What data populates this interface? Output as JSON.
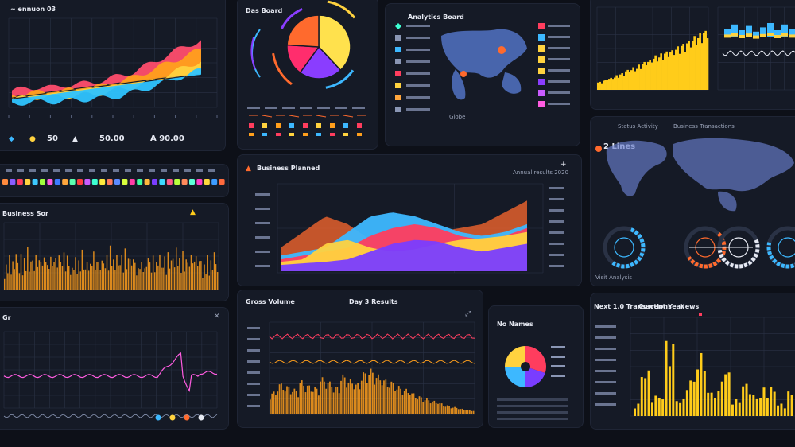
{
  "panels": {
    "top_left": {
      "title": "~ ennuon 03",
      "stats": [
        "50",
        "50.00",
        "A 90.00"
      ]
    },
    "legend_strip": {
      "label_count": 18,
      "colors": [
        "#ff8a3d",
        "#8a5cff",
        "#ff3d5e",
        "#ffd23f",
        "#3dc9ff",
        "#a0ff3d",
        "#ff5ce1",
        "#3d7bff",
        "#ffa63d",
        "#5cffb1",
        "#ff3d3d",
        "#c95cff",
        "#3dffd2",
        "#ffea3d",
        "#ff7a5c",
        "#5c8aff",
        "#d9ff3d",
        "#ff3da6",
        "#3dffa0",
        "#ffb83d",
        "#7a3dff",
        "#3dd9ff",
        "#ff5c8a",
        "#b8ff3d",
        "#ff8a5c",
        "#5cffd9",
        "#ff3dc9",
        "#ffd93d",
        "#3d9cff",
        "#ff6a3d"
      ]
    },
    "mid_left": {
      "title": "Business Sor"
    },
    "bottom_left": {
      "title": "Gr"
    },
    "pie_panel": {
      "title": "Das Board"
    },
    "map_panel": {
      "title": "Analytics Board",
      "footer": "Globe"
    },
    "center_panel": {
      "title": "Business Planned",
      "subtitle": "Annual results 2020"
    },
    "top_right": {},
    "world_panel": {
      "title": "2 Lines",
      "labels": [
        "Status Activity",
        "Business Transactions"
      ],
      "gauge_label": "Visit Analysis"
    },
    "bottom_center": {
      "title": "Gross Volume",
      "subtitle": "Day 3 Results"
    },
    "donut_panel": {
      "title": "No Names"
    },
    "bottom_right": {
      "title": "Next 1.0 Transactions",
      "subtitle": "Current Year",
      "tag": "News"
    }
  },
  "chart_data": [
    {
      "type": "area",
      "name_ref": "top_left_stacked_area",
      "series": [
        {
          "color": "#ff4d6d",
          "values": [
            0.18,
            0.2,
            0.22,
            0.21,
            0.24,
            0.25,
            0.27,
            0.3,
            0.34,
            0.38,
            0.45,
            0.52,
            0.6,
            0.66,
            0.72
          ]
        },
        {
          "color": "#ff9f1c",
          "values": [
            0.13,
            0.15,
            0.16,
            0.16,
            0.18,
            0.19,
            0.21,
            0.24,
            0.28,
            0.32,
            0.38,
            0.44,
            0.5,
            0.56,
            0.62
          ]
        },
        {
          "color": "#ffd23f",
          "values": [
            0.09,
            0.1,
            0.11,
            0.11,
            0.12,
            0.13,
            0.14,
            0.16,
            0.19,
            0.22,
            0.26,
            0.32,
            0.38,
            0.44,
            0.5
          ]
        },
        {
          "color": "#2ec4ff",
          "values": [
            0.04,
            0.05,
            0.06,
            0.06,
            0.07,
            0.08,
            0.09,
            0.1,
            0.12,
            0.16,
            0.2,
            0.25,
            0.3,
            0.35,
            0.4
          ]
        }
      ]
    },
    {
      "type": "pie",
      "name_ref": "dashboard_pie",
      "values": [
        38,
        22,
        16,
        24
      ],
      "colors": [
        "#ffe14d",
        "#8a3dff",
        "#ff2d6d",
        "#ff6a2d"
      ]
    },
    {
      "type": "area",
      "name_ref": "center_stream_chart",
      "series": [
        {
          "color": "#ff6a2d",
          "values": [
            0.3,
            0.5,
            0.7,
            0.6,
            0.4,
            0.35,
            0.4,
            0.5,
            0.55,
            0.6,
            0.75,
            0.9
          ]
        },
        {
          "color": "#3db8ff",
          "values": [
            0.2,
            0.25,
            0.3,
            0.5,
            0.7,
            0.75,
            0.7,
            0.6,
            0.5,
            0.45,
            0.5,
            0.6
          ]
        },
        {
          "color": "#ff3d5e",
          "values": [
            0.15,
            0.2,
            0.25,
            0.3,
            0.45,
            0.55,
            0.6,
            0.55,
            0.45,
            0.4,
            0.45,
            0.55
          ]
        },
        {
          "color": "#ffd23f",
          "values": [
            0.12,
            0.15,
            0.35,
            0.4,
            0.3,
            0.25,
            0.28,
            0.35,
            0.4,
            0.42,
            0.45,
            0.5
          ]
        },
        {
          "color": "#7a3dff",
          "values": [
            0.08,
            0.1,
            0.12,
            0.15,
            0.25,
            0.35,
            0.4,
            0.38,
            0.3,
            0.25,
            0.3,
            0.35
          ]
        }
      ]
    },
    {
      "type": "bar",
      "name_ref": "top_right_bar_chart",
      "values": [
        0.12,
        0.15,
        0.18,
        0.2,
        0.22,
        0.25,
        0.3,
        0.32,
        0.34,
        0.38,
        0.42,
        0.45,
        0.5,
        0.52,
        0.55,
        0.58,
        0.6,
        0.64,
        0.66,
        0.7,
        0.74,
        0.78,
        0.82,
        0.86,
        0.9,
        0.95
      ],
      "color": "#ffcc1a"
    },
    {
      "type": "bar",
      "name_ref": "mid_left_bar_chart",
      "values": [
        0.3,
        0.5,
        0.42,
        0.7,
        0.35,
        0.6,
        0.45,
        0.8,
        0.55,
        0.4,
        0.72,
        0.38,
        0.62,
        0.5,
        0.85,
        0.44,
        0.58,
        0.66,
        0.4,
        0.75,
        0.52,
        0.6,
        0.7,
        0.48,
        0.9,
        0.55,
        0.64,
        0.42,
        0.78,
        0.5,
        0.6,
        0.7,
        0.46,
        0.82,
        0.55,
        0.62,
        0.74,
        0.5,
        0.68,
        0.58
      ],
      "color": "#ff9f1c"
    },
    {
      "type": "bar",
      "name_ref": "bottom_center_bar_chart",
      "values": [
        0.4,
        0.55,
        0.5,
        0.45,
        0.6,
        0.52,
        0.48,
        0.65,
        0.58,
        0.5,
        0.7,
        0.62,
        0.55,
        0.75,
        0.8,
        0.7,
        0.62,
        0.58,
        0.5,
        0.45,
        0.38,
        0.32,
        0.28,
        0.24,
        0.2,
        0.16,
        0.13,
        0.1,
        0.08,
        0.07
      ],
      "color": "#ff9f1c"
    },
    {
      "type": "bar",
      "name_ref": "bottom_right_bar_chart",
      "values": [
        0.15,
        0.55,
        0.25,
        0.9,
        0.2,
        0.45,
        0.75,
        0.3,
        0.55,
        0.2,
        0.4,
        0.25,
        0.35,
        0.15,
        0.3
      ],
      "color": "#ffcc1a"
    },
    {
      "type": "pie",
      "name_ref": "bottom_donut",
      "values": [
        30,
        20,
        25,
        25
      ],
      "colors": [
        "#ff3d5e",
        "#7a3dff",
        "#3db8ff",
        "#ffd23f"
      ]
    }
  ],
  "colors": {
    "panel_bg": "#151a26",
    "grid": "#2a3245",
    "accent_blue": "#3db8ff",
    "accent_yellow": "#ffcc1a"
  },
  "icons": [
    "diamond-icon",
    "triangle-icon",
    "plus-icon",
    "gauge-icon",
    "warning-icon"
  ]
}
